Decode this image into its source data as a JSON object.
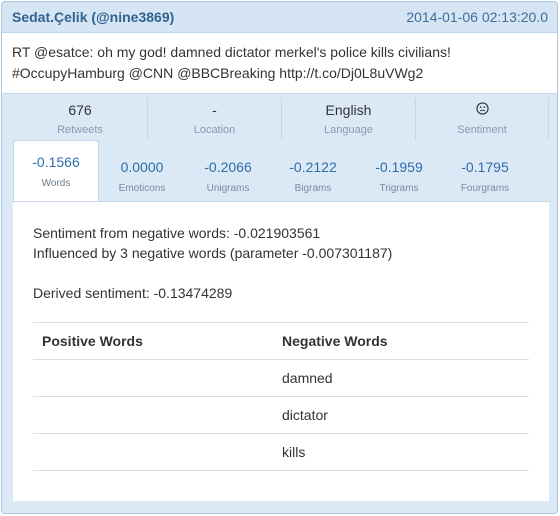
{
  "header": {
    "user": "Sedat.Çelik (@nine3869)",
    "timestamp": "2014-01-06 02:13:20.0"
  },
  "tweet": {
    "line1": "RT @esatce: oh my god! damned dictator merkel's police kills civilians!",
    "line2": "#OccupyHamburg @CNN @BBCBreaking http://t.co/Dj0L8uVWg2"
  },
  "stats": [
    {
      "value": "676",
      "label": "Retweets"
    },
    {
      "value": "-",
      "label": "Location"
    },
    {
      "value": "English",
      "label": "Language"
    },
    {
      "icon": "neutral-face-icon",
      "label": "Sentiment"
    }
  ],
  "tabs": [
    {
      "value": "-0.1566",
      "label": "Words",
      "active": true
    },
    {
      "value": "0.0000",
      "label": "Emoticons"
    },
    {
      "value": "-0.2066",
      "label": "Unigrams"
    },
    {
      "value": "-0.2122",
      "label": "Bigrams"
    },
    {
      "value": "-0.1959",
      "label": "Trigrams"
    },
    {
      "value": "-0.1795",
      "label": "Fourgrams"
    }
  ],
  "details": {
    "negative_sentiment": "Sentiment from negative words: -0.021903561",
    "influence": "Influenced by 3 negative words (parameter -0.007301187)",
    "derived": "Derived sentiment: -0.13474289"
  },
  "words_table": {
    "positive_header": "Positive Words",
    "negative_header": "Negative Words",
    "negative_words": [
      "damned",
      "dictator",
      "kills"
    ]
  },
  "colors": {
    "panel_bg": "#dbe9f6",
    "header_text": "#31628f",
    "tab_value": "#2f6da8"
  }
}
